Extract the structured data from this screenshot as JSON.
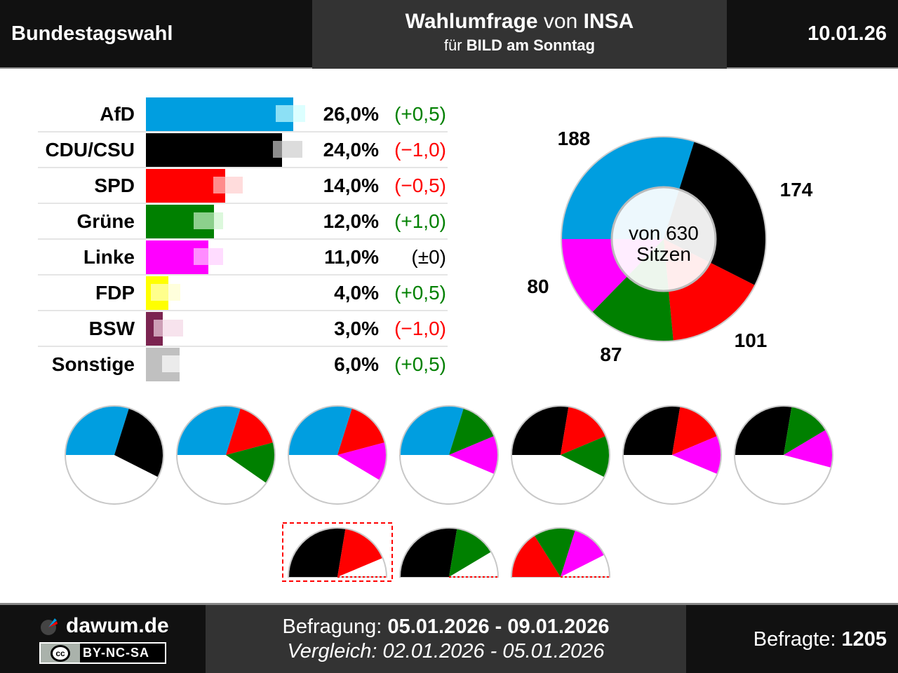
{
  "header": {
    "left": "Bundestagswahl",
    "title_main": "Wahlumfrage",
    "title_von": " von ",
    "institute": "INSA",
    "sub_pre": "für ",
    "sub_client": "BILD am Sonntag",
    "date": "10.01.26"
  },
  "colors": {
    "AfD": "#009ee0",
    "CDU/CSU": "#000000",
    "SPD": "#ff0000",
    "Grüne": "#008000",
    "Linke": "#ff00ff",
    "FDP": "#ffff00",
    "BSW": "#7b2450",
    "Sonstige": "#c0c0c0",
    "positive": "#008000",
    "negative": "#ff0000"
  },
  "chart_data": [
    {
      "type": "bar",
      "orientation": "horizontal",
      "categories": [
        "AfD",
        "CDU/CSU",
        "SPD",
        "Grüne",
        "Linke",
        "FDP",
        "BSW",
        "Sonstige"
      ],
      "values": [
        26.0,
        24.0,
        14.0,
        12.0,
        11.0,
        4.0,
        3.0,
        6.0
      ],
      "value_labels": [
        "26,0%",
        "24,0%",
        "14,0%",
        "12,0%",
        "11,0%",
        "4,0%",
        "3,0%",
        "6,0%"
      ],
      "previous": [
        25.5,
        25.0,
        14.5,
        11.0,
        11.0,
        3.5,
        4.0,
        5.5
      ],
      "change_labels": [
        "(+0,5)",
        "(−1,0)",
        "(−0,5)",
        "(+1,0)",
        "(±0)",
        "(+0,5)",
        "(−1,0)",
        "(+0,5)"
      ],
      "change_sign": [
        1,
        -1,
        -1,
        1,
        0,
        1,
        -1,
        1
      ]
    },
    {
      "type": "pie",
      "variant": "donut",
      "categories": [
        "AfD",
        "CDU/CSU",
        "SPD",
        "Grüne",
        "Linke"
      ],
      "values": [
        188,
        174,
        101,
        87,
        80
      ],
      "center_line1": "von 630",
      "center_line2": "Sitzen",
      "total": 630
    }
  ],
  "coalitions": [
    {
      "parties": [
        "AfD",
        "CDU/CSU"
      ],
      "seats": [
        188,
        174
      ]
    },
    {
      "parties": [
        "AfD",
        "SPD",
        "Grüne"
      ],
      "seats": [
        188,
        101,
        87
      ]
    },
    {
      "parties": [
        "AfD",
        "SPD",
        "Linke"
      ],
      "seats": [
        188,
        101,
        80
      ]
    },
    {
      "parties": [
        "AfD",
        "Grüne",
        "Linke"
      ],
      "seats": [
        188,
        87,
        80
      ]
    },
    {
      "parties": [
        "CDU/CSU",
        "SPD",
        "Grüne"
      ],
      "seats": [
        174,
        101,
        87
      ]
    },
    {
      "parties": [
        "CDU/CSU",
        "SPD",
        "Linke"
      ],
      "seats": [
        174,
        101,
        80
      ]
    },
    {
      "parties": [
        "CDU/CSU",
        "Grüne",
        "Linke"
      ],
      "seats": [
        174,
        87,
        80
      ]
    },
    {
      "parties": [
        "CDU/CSU",
        "SPD"
      ],
      "seats": [
        174,
        101
      ],
      "highlighted": true
    },
    {
      "parties": [
        "CDU/CSU",
        "Grüne"
      ],
      "seats": [
        174,
        87
      ]
    },
    {
      "parties": [
        "SPD",
        "Grüne",
        "Linke"
      ],
      "seats": [
        101,
        87,
        80
      ]
    }
  ],
  "footer": {
    "site": "dawum.de",
    "license": "BY-NC-SA",
    "cc": "cc",
    "survey_label": "Befragung: ",
    "survey_dates": "05.01.2026 - 09.01.2026",
    "compare": "Vergleich: 02.01.2026 - 05.01.2026",
    "respondents_label": "Befragte: ",
    "respondents": "1205"
  }
}
